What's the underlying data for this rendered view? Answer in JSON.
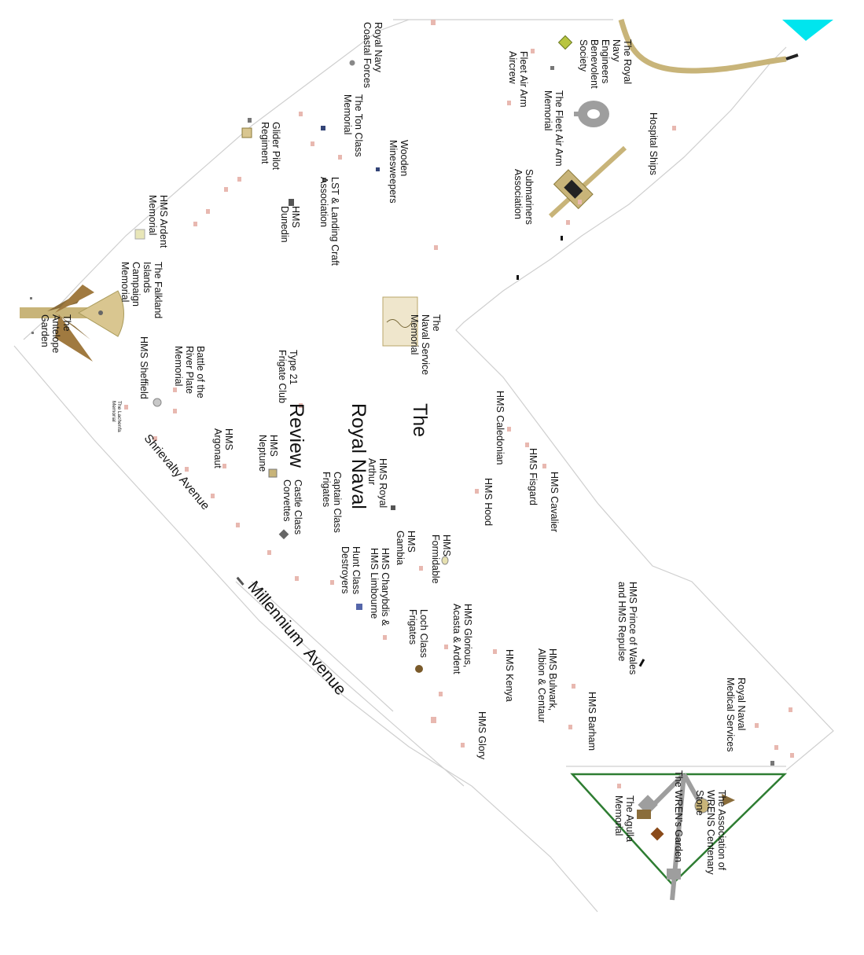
{
  "map": {
    "title_line1": "The",
    "title_line2": "Royal Naval",
    "title_line3": "Review",
    "roads": {
      "millennium": "Millennium  Avenue",
      "shrievalty": "Shrievalty Avenue"
    },
    "labels": {
      "royal_navy_coastal_forces": "Royal Navy\nCoastal Forces",
      "royal_navy_engineers": "The Royal\nNavy\nEngineers\nBenevolent\nSociety",
      "fleet_air_arm_aircrew": "Fleet Air Arm\nAircrew",
      "fleet_air_arm_memorial": "The Fleet Air Arm\nMemorial",
      "hospital_ships": "Hospital Ships",
      "submariners": "Submariners\nAssociation",
      "ton_class": "The Ton Class\nMemorial",
      "wooden_minesweepers": "Wooden\nMinesweepers",
      "glider_pilot": "Glider Pilot\nRegiment",
      "lst_landing_craft": "LST & Landing Craft\nAssociation",
      "hms_dunedin": "HMS\nDunedin",
      "hms_ardent": "HMS Ardent\nMemorial",
      "falklands": "The Falkland\nIslands\nCampaign\nMemorial",
      "antelope_garden": "The\nAntelope\nGarden",
      "naval_service_memorial": "The\nNaval Service\nMemorial",
      "hms_sheffield": "HMS Sheffield",
      "river_plate": "Battle of the\nRiver Plate\nMemorial",
      "type_21": "Type 21\nFrigate Club",
      "laybank": "The Lachenfa\nMemorial",
      "hms_caledonian": "HMS Caledonian",
      "hms_fisgard": "HMS Fisgard",
      "hms_cavalier": "HMS Cavalier",
      "hms_hood": "HMS Hood",
      "hms_argonaut": "HMS\nArgonaut",
      "hms_neptune": "HMS\nNeptune",
      "hms_royal_arthur": "HMS Royal\nArthur",
      "castle_class": "Castle Class\nCorvettes",
      "captain_class": "Captain Class\nFrigates",
      "hms_formidable": "HMS\nFormidable",
      "hms_gambia": "HMS\nGambia",
      "charybdis": "HMS Charybdis &\nHMS Limbourne",
      "hunt_class": "Hunt Class\nDestroyers",
      "loch_class": "Loch Class\nFrigates",
      "hms_glorious": "HMS Glorious,\nAcasta & Ardent",
      "prince_of_wales": "HMS Prince of Wales\nand HMS Repulse",
      "hms_kenya": "HMS Kenya",
      "hms_bulwark": "HMS Bulwark,\nAlbion & Centaur",
      "hms_barham": "HMS Barham",
      "hms_glory": "HMS Glory",
      "royal_naval_medical": "Royal Naval\nMedical Services",
      "wrens_centenary": "The Association of\nWRENS Centenary\nStone",
      "wrens_garden": "The WREN's Garden",
      "agulha": "The Agulla\nMemorial"
    },
    "colors": {
      "path": "#c8b479",
      "boundary": "#bdbdbd",
      "wren_triangle": "#2e7d32",
      "water": "#00e5ee",
      "plaque": "#e8b8b0"
    }
  }
}
